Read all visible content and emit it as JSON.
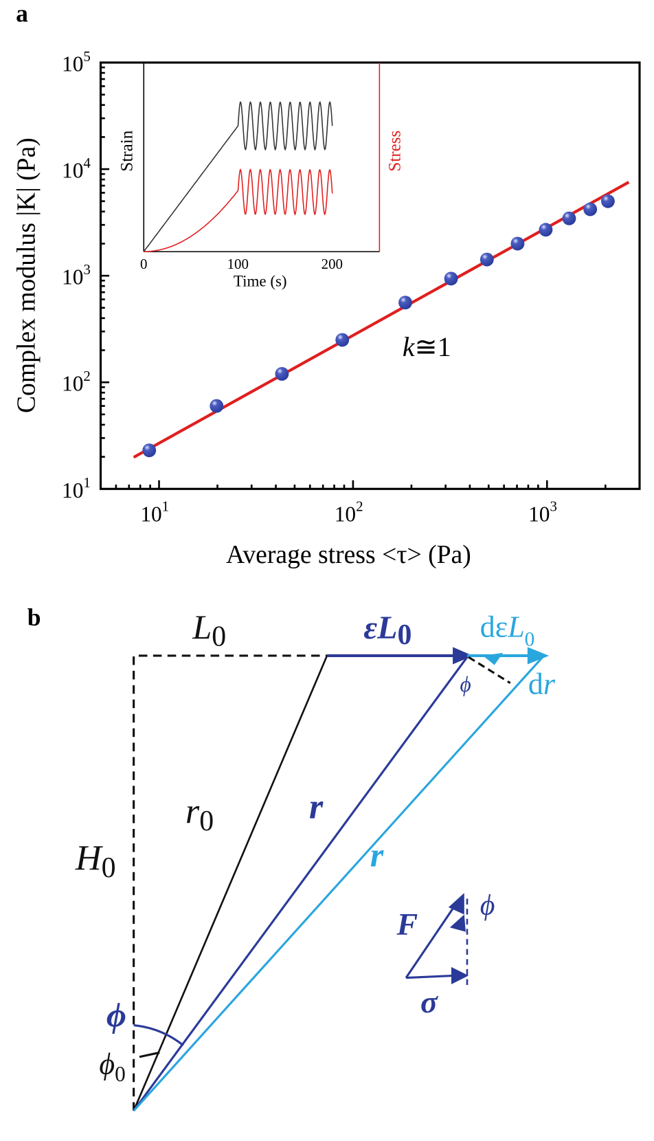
{
  "panel_a": {
    "label": "a",
    "chart_data": {
      "type": "scatter",
      "x_scale": "log",
      "y_scale": "log",
      "xlabel": "Average stress <τ> (Pa)",
      "ylabel": "Complex modulus |K| (Pa)",
      "xlim": [
        5,
        3000
      ],
      "ylim": [
        10,
        100000
      ],
      "x_ticks": [
        {
          "base": "10",
          "exp": "1",
          "value": 10
        },
        {
          "base": "10",
          "exp": "2",
          "value": 100
        },
        {
          "base": "10",
          "exp": "3",
          "value": 1000
        }
      ],
      "y_ticks": [
        {
          "base": "10",
          "exp": "1",
          "value": 10
        },
        {
          "base": "10",
          "exp": "2",
          "value": 100
        },
        {
          "base": "10",
          "exp": "3",
          "value": 1000
        },
        {
          "base": "10",
          "exp": "4",
          "value": 10000
        },
        {
          "base": "10",
          "exp": "5",
          "value": 100000
        }
      ],
      "points": {
        "x": [
          8.9,
          19.8,
          43,
          88,
          186,
          320,
          490,
          705,
          985,
          1300,
          1670,
          2060
        ],
        "y": [
          23,
          60,
          120,
          250,
          560,
          940,
          1420,
          2000,
          2700,
          3450,
          4200,
          5000
        ],
        "color": "#2a3b9c"
      },
      "fit_line": {
        "x": [
          7.4,
          2640
        ],
        "y": [
          19.8,
          7550
        ],
        "color": "#e01f1f"
      },
      "annotation": {
        "k": "k",
        "rest": "≅1"
      },
      "grid": false,
      "inset": {
        "type": "line",
        "xlabel": "Time (s)",
        "ylabel_left": "Strain",
        "ylabel_right": "Stress",
        "xlim": [
          0,
          250
        ],
        "x_ticks": [
          "0",
          "100",
          "200"
        ],
        "series": [
          {
            "name": "Strain",
            "color": "#333333",
            "ramp_end_time": 100,
            "oscillation_end_time": 200,
            "cycles": 9.5
          },
          {
            "name": "Stress",
            "color": "#e01f1f",
            "ramp_end_time": 100,
            "oscillation_end_time": 200,
            "cycles": 9.5
          }
        ]
      }
    }
  },
  "panel_b": {
    "label": "b",
    "colors": {
      "black": "#111111",
      "dark_blue": "#2b3a98",
      "light_blue": "#2aa6de"
    },
    "labels": {
      "L0": {
        "main": "L",
        "sub": "0"
      },
      "epsL0": {
        "main": "εL",
        "sub": "0"
      },
      "depsL0": {
        "d": "dε",
        "main": "L",
        "sub": "0"
      },
      "dr": {
        "d": "d",
        "main": "r"
      },
      "phi_top": "ϕ",
      "r0": {
        "main": "r",
        "sub": "0"
      },
      "r_dark": "r",
      "r_light": "r",
      "H0": {
        "main": "H",
        "sub": "0"
      },
      "F": "F",
      "phi_force": "ϕ",
      "sigma": "σ",
      "phi_bottom": "ϕ",
      "phi0": {
        "main": "ϕ",
        "sub": "0"
      }
    }
  }
}
